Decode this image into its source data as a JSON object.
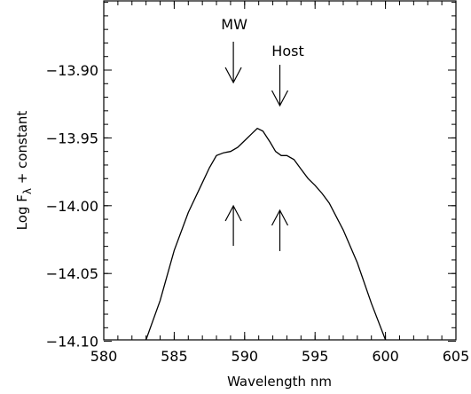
{
  "chart_data": {
    "type": "line",
    "title": "",
    "xlabel": "Wavelength nm",
    "ylabel_main": "Log F",
    "ylabel_sub": "λ",
    "ylabel_tail": " + constant",
    "xlim": [
      580,
      605
    ],
    "ylim": [
      -14.1,
      -13.85
    ],
    "xticks": [
      580,
      585,
      590,
      595,
      600,
      605
    ],
    "xtick_labels": [
      "580",
      "585",
      "590",
      "595",
      "600",
      "605"
    ],
    "yticks": [
      -14.1,
      -14.05,
      -14.0,
      -13.95,
      -13.9
    ],
    "ytick_labels": [
      "−14.10",
      "−14.05",
      "−14.00",
      "−13.95",
      "−13.90"
    ],
    "grid": false,
    "series": [
      {
        "x": [
          583.0,
          584.0,
          585.0,
          586.0,
          587.0,
          587.5,
          588.0,
          588.5,
          589.0,
          589.5,
          590.0,
          590.5,
          590.9,
          591.3,
          591.8,
          592.2,
          592.6,
          593.0,
          593.5,
          594.0,
          594.5,
          595.0,
          595.5,
          596.0,
          597.0,
          598.0,
          599.0,
          600.0
        ],
        "y": [
          -14.1,
          -14.07,
          -14.033,
          -14.005,
          -13.983,
          -13.972,
          -13.963,
          -13.961,
          -13.96,
          -13.957,
          -13.952,
          -13.947,
          -13.943,
          -13.945,
          -13.953,
          -13.96,
          -13.963,
          -13.963,
          -13.966,
          -13.973,
          -13.98,
          -13.985,
          -13.991,
          -13.998,
          -14.018,
          -14.042,
          -14.072,
          -14.1
        ]
      }
    ],
    "annotations": [
      {
        "label": "MW",
        "x": 589.2,
        "direction": "down"
      },
      {
        "label": "Host",
        "x": 592.5,
        "direction": "down"
      },
      {
        "label": "",
        "x": 589.2,
        "direction": "up"
      },
      {
        "label": "",
        "x": 592.5,
        "direction": "up"
      }
    ]
  }
}
